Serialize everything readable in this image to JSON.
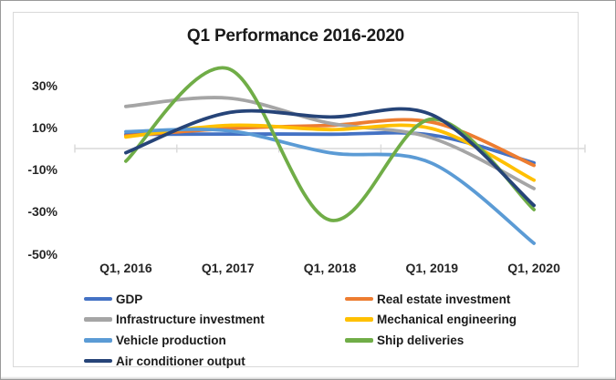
{
  "chart_data": {
    "type": "line",
    "title": "Q1 Performance 2016-2020",
    "categories": [
      "Q1, 2016",
      "Q1, 2017",
      "Q1, 2018",
      "Q1, 2019",
      "Q1, 2020"
    ],
    "series": [
      {
        "name": "GDP",
        "color": "#4472C4",
        "values": [
          6.7,
          6.9,
          6.8,
          6.4,
          -6.8
        ]
      },
      {
        "name": "Real estate investment",
        "color": "#ED7D31",
        "values": [
          6,
          9.5,
          11,
          12.5,
          -8
        ]
      },
      {
        "name": "Infrastructure investment",
        "color": "#A5A5A5",
        "values": [
          20,
          24,
          12,
          5,
          -19
        ]
      },
      {
        "name": "Mechanical engineering",
        "color": "#FFC000",
        "values": [
          5.5,
          11,
          9,
          9.5,
          -15
        ]
      },
      {
        "name": "Vehicle production",
        "color": "#5B9BD5",
        "values": [
          8,
          8.5,
          -2,
          -7,
          -45
        ]
      },
      {
        "name": "Ship deliveries",
        "color": "#70AD47",
        "values": [
          -6,
          38,
          -34,
          14,
          -29
        ]
      },
      {
        "name": "Air conditioner output",
        "color": "#264478",
        "values": [
          -2,
          17,
          15,
          16,
          -27
        ]
      }
    ],
    "y_axis": {
      "tick_labels": [
        "30%",
        "10%",
        "-10%",
        "-30%",
        "-50%"
      ],
      "tick_values": [
        30,
        10,
        -10,
        -30,
        -50
      ],
      "visible_range": [
        -55,
        42
      ],
      "unit": "percent"
    },
    "x_axis": {
      "tick_labels": [
        "Q1, 2016",
        "Q1, 2017",
        "Q1, 2018",
        "Q1, 2019",
        "Q1, 2020"
      ]
    },
    "grid": false,
    "line_smoothing": true,
    "legend_position": "bottom",
    "legend_layout": "two-column",
    "axis_line_color": "#d9d9d9"
  }
}
